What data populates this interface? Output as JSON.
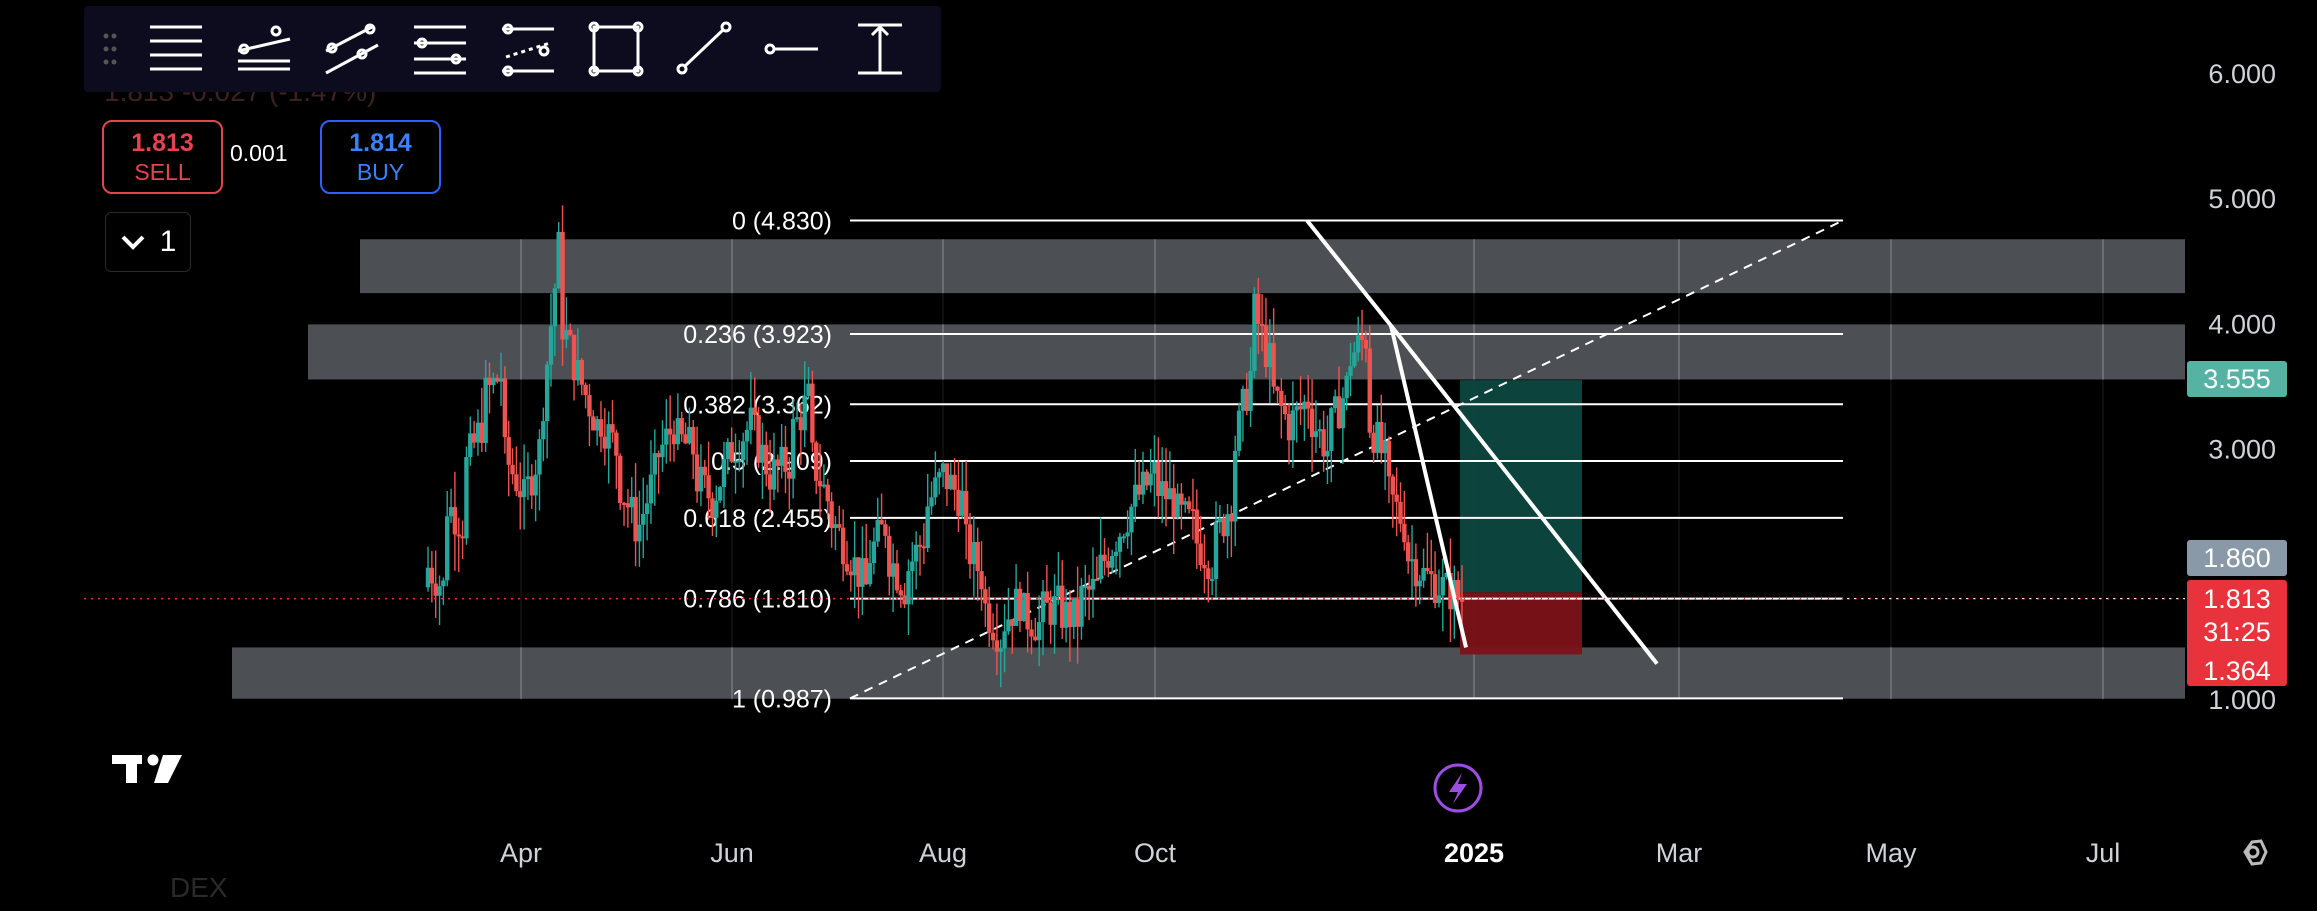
{
  "toolbar": {
    "tools": [
      {
        "name": "horizontal-lines-icon"
      },
      {
        "name": "trend-channel-icon"
      },
      {
        "name": "parallel-channel-icon"
      },
      {
        "name": "fib-retracement-icon"
      },
      {
        "name": "fib-channel-icon"
      },
      {
        "name": "rectangle-icon"
      },
      {
        "name": "trend-line-icon"
      },
      {
        "name": "horizontal-ray-icon"
      },
      {
        "name": "price-range-icon"
      }
    ]
  },
  "order_panel": {
    "faded_header": "1.813 -0.027 (-1.47%)",
    "sell_price": "1.813",
    "sell_label": "SELL",
    "spread": "0.001",
    "buy_price": "1.814",
    "buy_label": "BUY",
    "indicator_count": "1"
  },
  "watermark": "DEX",
  "colors": {
    "background": "#000000",
    "candle_up": "#26a69a",
    "candle_down": "#ef5350",
    "zone_fill": "#7a7f86",
    "target_fill": "#0d4a44",
    "stop_fill": "#7d1219",
    "price_tag_red": "#e8323c",
    "target_tag": "#56b3a3",
    "grey_tag": "#8a99a8",
    "replay_icon": "#9c4ee0"
  },
  "chart_data": {
    "type": "candlestick",
    "x_ticks": [
      "Apr",
      "Jun",
      "Aug",
      "Oct",
      "2025",
      "Mar",
      "May",
      "Jul"
    ],
    "y_ticks": [
      "6.000",
      "5.000",
      "4.000",
      "3.000",
      "1.000"
    ],
    "y_range": [
      0.6,
      6.2
    ],
    "current_price_tag": "1.813",
    "countdown": "31:25",
    "target_tag": "3.555",
    "stop_tag": "1.364",
    "grey_tag": "1.860",
    "fib_levels": [
      {
        "label": "0 (4.830)",
        "value": 4.83
      },
      {
        "label": "0.236 (3.923)",
        "value": 3.923
      },
      {
        "label": "0.382 (3.362)",
        "value": 3.362
      },
      {
        "label": "0.5 (2.909)",
        "value": 2.909
      },
      {
        "label": "0.618 (2.455)",
        "value": 2.455
      },
      {
        "label": "0.786 (1.810)",
        "value": 1.81
      },
      {
        "label": "1 (0.987)",
        "value": 0.987
      }
    ],
    "zones": [
      {
        "low": 4.25,
        "high": 4.68
      },
      {
        "low": 3.56,
        "high": 4.0
      },
      {
        "low": 0.99,
        "high": 1.42
      }
    ],
    "position": {
      "entry": 1.86,
      "target": 3.555,
      "stop": 1.364
    },
    "price_series": [
      {
        "m": 2.1,
        "c": 1.9
      },
      {
        "m": 2.6,
        "c": 2.4
      },
      {
        "m": 2.8,
        "c": 3.2
      },
      {
        "m": 3.4,
        "c": 3.6
      },
      {
        "m": 3.0,
        "c": 2.7
      },
      {
        "m": 2.5,
        "c": 3.0
      },
      {
        "m": 3.1,
        "c": 4.6
      },
      {
        "m": 4.1,
        "c": 3.6
      },
      {
        "m": 3.6,
        "c": 3.2
      },
      {
        "m": 3.3,
        "c": 3.0
      },
      {
        "m": 2.8,
        "c": 2.4
      },
      {
        "m": 2.3,
        "c": 2.8
      },
      {
        "m": 2.9,
        "c": 3.2
      },
      {
        "m": 3.1,
        "c": 3.0
      },
      {
        "m": 2.8,
        "c": 2.6
      },
      {
        "m": 2.6,
        "c": 3.0
      },
      {
        "m": 3.0,
        "c": 3.2
      },
      {
        "m": 3.2,
        "c": 2.8
      },
      {
        "m": 2.8,
        "c": 2.9
      },
      {
        "m": 3.1,
        "c": 3.4
      },
      {
        "m": 3.0,
        "c": 2.6
      },
      {
        "m": 2.5,
        "c": 2.2
      },
      {
        "m": 2.2,
        "c": 1.9
      },
      {
        "m": 2.1,
        "c": 2.4
      },
      {
        "m": 2.2,
        "c": 1.9
      },
      {
        "m": 2.0,
        "c": 2.3
      },
      {
        "m": 2.5,
        "c": 2.8
      },
      {
        "m": 2.8,
        "c": 2.6
      },
      {
        "m": 2.3,
        "c": 2.0
      },
      {
        "m": 1.8,
        "c": 1.5
      },
      {
        "m": 1.6,
        "c": 1.8
      },
      {
        "m": 1.7,
        "c": 1.6
      },
      {
        "m": 1.7,
        "c": 1.75
      },
      {
        "m": 1.7,
        "c": 1.65
      },
      {
        "m": 1.8,
        "c": 1.9
      },
      {
        "m": 2.0,
        "c": 2.3
      },
      {
        "m": 2.3,
        "c": 2.6
      },
      {
        "m": 2.6,
        "c": 2.8
      },
      {
        "m": 2.7,
        "c": 2.6
      },
      {
        "m": 2.5,
        "c": 2.4
      },
      {
        "m": 2.3,
        "c": 2.1
      },
      {
        "m": 2.2,
        "c": 2.6
      },
      {
        "m": 2.9,
        "c": 3.6
      },
      {
        "m": 4.2,
        "c": 3.7
      },
      {
        "m": 3.5,
        "c": 3.2
      },
      {
        "m": 3.2,
        "c": 3.4
      },
      {
        "m": 3.3,
        "c": 3.0
      },
      {
        "m": 3.1,
        "c": 3.5
      },
      {
        "m": 3.7,
        "c": 3.9
      },
      {
        "m": 3.3,
        "c": 2.9
      },
      {
        "m": 2.7,
        "c": 2.4
      },
      {
        "m": 2.2,
        "c": 2.0
      },
      {
        "m": 2.0,
        "c": 1.9
      },
      {
        "m": 1.9,
        "c": 1.81
      }
    ]
  }
}
